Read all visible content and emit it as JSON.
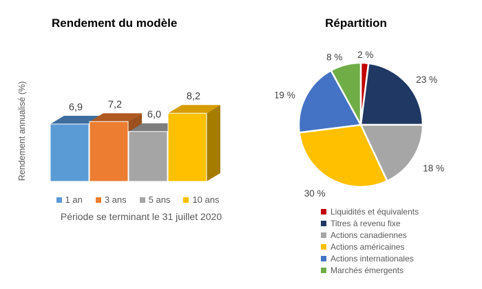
{
  "page": {
    "background": "#FFFFFF"
  },
  "chart_data": [
    {
      "type": "bar",
      "variant": "3d-column",
      "title": "Rendement du modèle",
      "xlabel": "",
      "ylabel": "Rendement annualisé (%)",
      "caption": "Période se terminant le 31 juillet 2020",
      "categories": [
        "1 an",
        "3 ans",
        "5 ans",
        "10 ans"
      ],
      "values": [
        6.9,
        7.2,
        6.0,
        8.2
      ],
      "value_labels": [
        "6,9",
        "7,2",
        "6,0",
        "8,2"
      ],
      "colors": {
        "front": [
          "#5B9BD5",
          "#ED7D31",
          "#A5A5A5",
          "#FFC000"
        ],
        "top": [
          "#3D6E9E",
          "#AE5A21",
          "#7E7E7E",
          "#D79C00"
        ],
        "side": [
          "#35618C",
          "#9B501D",
          "#6F6F6F",
          "#A67C00"
        ]
      },
      "legend_position": "bottom",
      "grid": false
    },
    {
      "type": "pie",
      "title": "Répartition",
      "start_angle_deg": 0,
      "direction": "clockwise",
      "slices": [
        {
          "label": "Liquidités et équivalents",
          "value": 2,
          "display": "2 %",
          "color": "#C00000"
        },
        {
          "label": "Titres à revenu fixe",
          "value": 23,
          "display": "23 %",
          "color": "#1F3864"
        },
        {
          "label": "Actions canadiennes",
          "value": 18,
          "display": "18 %",
          "color": "#A6A6A6"
        },
        {
          "label": "Actions américaines",
          "value": 30,
          "display": "30 %",
          "color": "#FFC000"
        },
        {
          "label": "Actions internationales",
          "value": 19,
          "display": "19 %",
          "color": "#4472C4"
        },
        {
          "label": "Marchés émergents",
          "value": 8,
          "display": "8 %",
          "color": "#70AD47"
        }
      ],
      "legend_position": "bottom-right"
    }
  ]
}
